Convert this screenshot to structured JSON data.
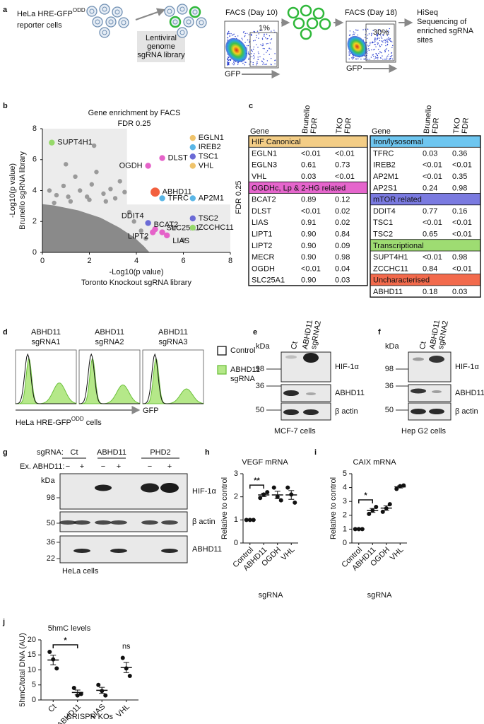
{
  "panel_labels": [
    "a",
    "b",
    "c",
    "d",
    "e",
    "f",
    "g",
    "h",
    "i",
    "j"
  ],
  "panel_a": {
    "reporter": {
      "text": "HeLa HRE-GFP",
      "sup": "ODD"
    },
    "reporter_line2": "reporter cells",
    "library": [
      "Lentiviral",
      "genome",
      "sgRNA library"
    ],
    "facs1": {
      "title": "FACS (Day 10)",
      "gate": "1%",
      "axis": "GFP"
    },
    "facs2": {
      "title": "FACS (Day 18)",
      "gate": "30%",
      "axis": "GFP"
    },
    "sequencing": [
      "HiSeq",
      "Sequencing of",
      "enriched sgRNA",
      "sites"
    ]
  },
  "chart_data": [
    {
      "type": "scatter",
      "title": "Gene enrichment by FACS",
      "subtitle": "FDR 0.25",
      "threshold_label": "FDR 0.25",
      "x_label": "-Log10(p value)",
      "x_label2": "Toronto Knockout sgRNA library",
      "y_label": "-Log10(p value)",
      "y_label2": "Brunello sgRNA library",
      "xlim": [
        0,
        8
      ],
      "ylim": [
        0,
        8
      ],
      "xticks": [
        0,
        2,
        4,
        6,
        8
      ],
      "yticks": [
        0,
        2,
        4,
        6,
        8
      ],
      "fdr_threshold_x": 3.6,
      "fdr_threshold_y": 3.1,
      "other_genes": {
        "color": "#9a9a9a",
        "x": [
          0.3,
          0.6,
          0.9,
          1.1,
          1.4,
          1.6,
          1.9,
          2.1,
          2.3,
          2.6,
          2.9,
          3.1,
          3.3,
          3.5,
          0.5,
          1.2,
          2.0,
          2.7,
          3.7,
          3.9,
          4.2,
          4.4,
          5.6,
          6.0,
          1.0,
          2.2
        ],
        "y": [
          4.0,
          3.7,
          4.3,
          3.6,
          4.9,
          4.0,
          3.6,
          4.4,
          5.2,
          3.8,
          4.1,
          3.5,
          4.6,
          3.9,
          3.2,
          3.3,
          3.4,
          3.3,
          2.6,
          2.0,
          1.4,
          0.9,
          1.6,
          0.8,
          5.7,
          6.9
        ]
      },
      "points": [
        {
          "name": "SUPT4H1",
          "x": 0.4,
          "y": 7.1,
          "color": "#96d96a"
        },
        {
          "name": "DLST",
          "x": 5.1,
          "y": 6.1,
          "color": "#e563c9"
        },
        {
          "name": "OGDH",
          "x": 4.5,
          "y": 5.6,
          "color": "#e563c9"
        },
        {
          "name": "ABHD11",
          "x": 4.8,
          "y": 3.9,
          "color": "#f2603f"
        },
        {
          "name": "TFRC",
          "x": 5.1,
          "y": 3.5,
          "color": "#5ab6e6"
        },
        {
          "name": "DDIT4",
          "x": 4.5,
          "y": 1.9,
          "color": "#6b6bd6"
        },
        {
          "name": "BCAT2",
          "x": 4.8,
          "y": 1.5,
          "color": "#e563c9"
        },
        {
          "name": "LIPT2",
          "x": 4.7,
          "y": 1.3,
          "color": "#e563c9"
        },
        {
          "name": "SLC25A1",
          "x": 5.1,
          "y": 1.3,
          "color": "#e563c9"
        },
        {
          "name": "LIAS",
          "x": 5.3,
          "y": 1.1,
          "color": "#e563c9"
        },
        {
          "name": "EGLN1",
          "x": 6.4,
          "y": 7.4,
          "color": "#efc36b"
        },
        {
          "name": "IREB2",
          "x": 6.4,
          "y": 6.8,
          "color": "#5ab6e6"
        },
        {
          "name": "TSC1",
          "x": 6.4,
          "y": 6.2,
          "color": "#6b6bd6"
        },
        {
          "name": "VHL",
          "x": 6.4,
          "y": 5.6,
          "color": "#efc36b"
        },
        {
          "name": "AP2M1",
          "x": 6.4,
          "y": 3.5,
          "color": "#5ab6e6"
        },
        {
          "name": "TSC2",
          "x": 6.4,
          "y": 2.2,
          "color": "#6b6bd6"
        },
        {
          "name": "ZCCHC11",
          "x": 6.4,
          "y": 1.6,
          "color": "#96d96a"
        }
      ]
    },
    {
      "type": "dot",
      "title": "VEGF mRNA",
      "y_label": "Relative to control",
      "x_label": "sgRNA",
      "categories": [
        "Control",
        "ABHD11",
        "OGDH",
        "VHL"
      ],
      "ylim": [
        0,
        3
      ],
      "yticks": [
        0,
        1,
        2,
        3
      ],
      "points": [
        [
          1,
          1,
          1
        ],
        [
          1.95,
          2.1,
          2.2
        ],
        [
          2.4,
          2.0,
          1.85
        ],
        [
          2.4,
          2.1,
          1.75
        ]
      ],
      "means": [
        1,
        2.08,
        2.08,
        2.08
      ],
      "errors": [
        0,
        0.07,
        0.16,
        0.19
      ],
      "annotations": [
        {
          "text": "**",
          "categories": [
            "Control",
            "ABHD11"
          ]
        }
      ]
    },
    {
      "type": "dot",
      "title": "CAIX mRNA",
      "y_label": "Relative to control",
      "x_label": "sgRNA",
      "categories": [
        "Control",
        "ABHD11",
        "OGDH",
        "VHL"
      ],
      "ylim": [
        0,
        5
      ],
      "yticks": [
        0,
        1,
        2,
        3,
        4,
        5
      ],
      "points": [
        [
          1,
          1,
          1
        ],
        [
          2.1,
          2.35,
          2.6
        ],
        [
          2.25,
          2.5,
          2.8
        ],
        [
          3.9,
          4.1,
          4.15
        ]
      ],
      "means": [
        1,
        2.35,
        2.52,
        4.05
      ],
      "errors": [
        0,
        0.14,
        0.16,
        0.08
      ],
      "annotations": [
        {
          "text": "*",
          "categories": [
            "Control",
            "ABHD11"
          ]
        }
      ]
    },
    {
      "type": "dot",
      "title": "5hmC levels",
      "y_label": "5hmC/total DNA (AU)",
      "x_label": "CRISPR KOs",
      "categories": [
        "Ct",
        "ABHD11",
        "LIAS",
        "VHL"
      ],
      "ylim": [
        0,
        20
      ],
      "yticks": [
        0,
        5,
        10,
        15,
        20
      ],
      "points": [
        [
          16,
          13.5,
          10.5
        ],
        [
          4,
          1.5,
          2
        ],
        [
          5,
          3,
          1.5
        ],
        [
          14,
          10.5,
          8
        ]
      ],
      "means": [
        13.3,
        2.5,
        3.2,
        10.8
      ],
      "errors": [
        1.6,
        0.8,
        1.0,
        1.7
      ],
      "annotations": [
        {
          "text": "*",
          "categories": [
            "Ct",
            "ABHD11"
          ]
        },
        {
          "text": "ns",
          "categories": [
            "VHL"
          ]
        }
      ]
    }
  ],
  "table_c": [
    {
      "headers": {
        "gene": "Gene",
        "col1": [
          "Brunello",
          "FDR"
        ],
        "col2": [
          "TKO",
          "FDR"
        ]
      },
      "groups": [
        {
          "name": "HIF Canonical",
          "color": "#f3cd86",
          "rows": [
            [
              "EGLN1",
              "<0.01",
              "<0.01"
            ],
            [
              "EGLN3",
              "0.61",
              "0.73"
            ],
            [
              "VHL",
              "0.03",
              "<0.01"
            ]
          ]
        },
        {
          "name": "OGDHc, Lp & 2-HG related",
          "color": "#e565cc",
          "rows": [
            [
              "BCAT2",
              "0.89",
              "0.12"
            ],
            [
              "DLST",
              "<0.01",
              "0.02"
            ],
            [
              "LIAS",
              "0.91",
              "0.02"
            ],
            [
              "LIPT1",
              "0.90",
              "0.84"
            ],
            [
              "LIPT2",
              "0.90",
              "0.09"
            ],
            [
              "MECR",
              "0.90",
              "0.98"
            ],
            [
              "OGDH",
              "<0.01",
              "0.04"
            ],
            [
              "SLC25A1",
              "0.90",
              "0.03"
            ]
          ]
        }
      ]
    },
    {
      "headers": {
        "gene": "Gene",
        "col1": [
          "Brunello",
          "FDR"
        ],
        "col2": [
          "TKO",
          "FDR"
        ]
      },
      "groups": [
        {
          "name": "Iron/lysosomal",
          "color": "#6ec6f0",
          "rows": [
            [
              "TFRC",
              "0.03",
              "0.36"
            ],
            [
              "IREB2",
              "<0.01",
              "<0.01"
            ],
            [
              "AP2M1",
              "<0.01",
              "0.35"
            ],
            [
              "AP2S1",
              "0.24",
              "0.98"
            ]
          ]
        },
        {
          "name": "mTOR related",
          "color": "#7a7ae0",
          "rows": [
            [
              "DDIT4",
              "0.77",
              "0.16"
            ],
            [
              "TSC1",
              "<0.01",
              "<0.01"
            ],
            [
              "TSC2",
              "0.65",
              "<0.01"
            ]
          ]
        },
        {
          "name": "Transcriptional",
          "color": "#9edc72",
          "rows": [
            [
              "SUPT4H1",
              "<0.01",
              "0.98"
            ],
            [
              "ZCCHC11",
              "0.84",
              "<0.01"
            ]
          ]
        },
        {
          "name": "Uncharacterised",
          "color": "#f26a4c",
          "rows": [
            [
              "ABHD11",
              "0.18",
              "0.03"
            ]
          ]
        }
      ]
    }
  ],
  "panel_d": {
    "titles": [
      [
        "ABHD11",
        "sgRNA1"
      ],
      [
        "ABHD11",
        "sgRNA2"
      ],
      [
        "ABHD11",
        "sgRNA3"
      ]
    ],
    "legend": [
      {
        "name": [
          "Control"
        ]
      },
      {
        "name": [
          "ABHD11",
          "sgRNA"
        ]
      }
    ],
    "axis": "GFP",
    "caption": {
      "text": "HeLa HRE-GFP",
      "sup": "ODD",
      "after": " cells"
    }
  },
  "panel_e": {
    "kda": "kDa",
    "lane_ct": "Ct",
    "lane_ko": [
      "ABHD11",
      "sgRNA2"
    ],
    "markers": [
      98,
      36,
      50
    ],
    "proteins": [
      "HIF-1α",
      "ABHD11",
      "β actin"
    ],
    "cells": "MCF-7 cells"
  },
  "panel_f": {
    "kda": "kDa",
    "lane_ct": "Ct",
    "lane_ko": [
      "ABHD11",
      "sgRNA2"
    ],
    "markers": [
      98,
      36,
      50
    ],
    "proteins": [
      "HIF-1α",
      "ABHD11",
      "β actin"
    ],
    "cells": "Hep G2 cells"
  },
  "panel_g": {
    "sgrna_label": "sgRNA:",
    "groups": [
      "Ct",
      "ABHD11",
      "PHD2"
    ],
    "ex_label": "Ex. ABHD11:",
    "signs": [
      "−",
      "+",
      "−",
      "+",
      "−",
      "+"
    ],
    "kda": "kDa",
    "markers": [
      98,
      50,
      36,
      22
    ],
    "proteins": [
      "HIF-1α",
      "β actin",
      "ABHD11"
    ],
    "cells": "HeLa cells"
  }
}
